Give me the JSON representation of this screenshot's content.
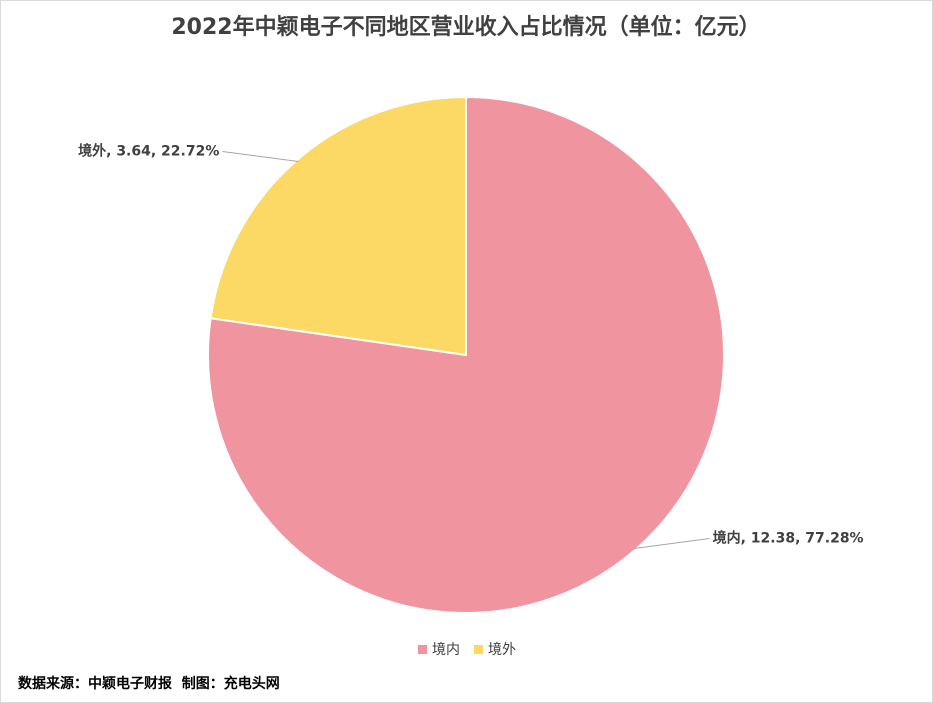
{
  "chart_data": {
    "type": "pie",
    "title": "2022年中颖电子不同地区营业收入占比情况（单位：亿元）",
    "categories": [
      "境内",
      "境外"
    ],
    "values": [
      12.38,
      3.64
    ],
    "value_labels": [
      "境内, 12.38, 77.28%",
      "境外, 3.64, 22.72%"
    ],
    "colors": [
      "#f0959f",
      "#fcd865"
    ],
    "legend": "bottom",
    "source": "数据来源：中颖电子财报  制图：充电头网"
  }
}
